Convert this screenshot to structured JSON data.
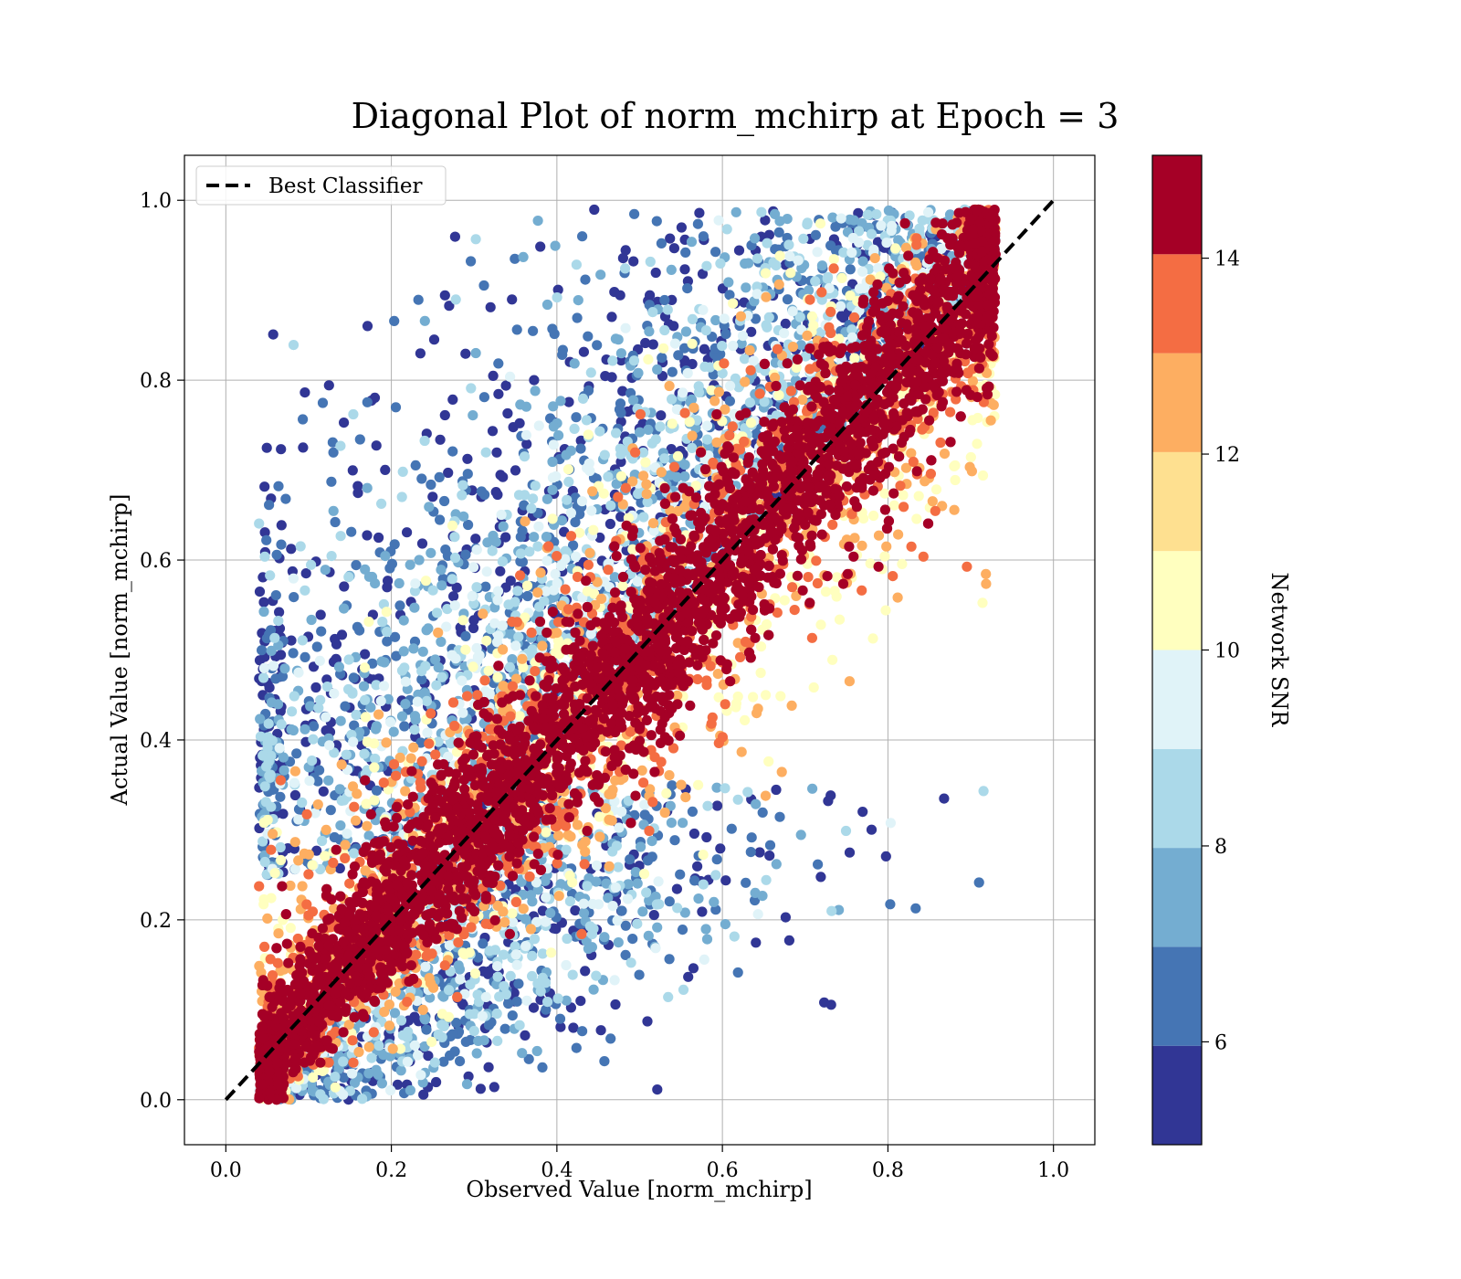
{
  "chart_data": {
    "type": "scatter",
    "title": "Diagonal Plot of norm_mchirp at Epoch = 3",
    "xlabel": "Observed Value [norm_mchirp]",
    "ylabel": "Actual Value [norm_mchirp]",
    "xlim": [
      -0.05,
      1.05
    ],
    "ylim": [
      -0.05,
      1.05
    ],
    "xticks": [
      "0.0",
      "0.2",
      "0.4",
      "0.6",
      "0.8",
      "1.0"
    ],
    "yticks": [
      "0.0",
      "0.2",
      "0.4",
      "0.6",
      "0.8",
      "1.0"
    ],
    "grid": true,
    "legend": {
      "position": "top-left",
      "entries": [
        "Best Classifier"
      ]
    },
    "reference_line": {
      "name": "Best Classifier",
      "x": [
        0,
        1
      ],
      "y": [
        0,
        1
      ],
      "style": "dashed",
      "color": "#000000"
    },
    "colorbar": {
      "label": "Network SNR",
      "range": [
        4.95,
        15.05
      ],
      "ticks": [
        "6",
        "8",
        "10",
        "12",
        "14"
      ],
      "levels": 10,
      "colors": [
        "#313695",
        "#4575b4",
        "#74add1",
        "#abd9e9",
        "#e0f3f8",
        "#ffffbf",
        "#fee090",
        "#fdae61",
        "#f46d43",
        "#a50026"
      ]
    },
    "points_description_snr_colored": true,
    "points": {
      "snr_bands": [
        {
          "snr": 14.5,
          "spread": 0.055
        },
        {
          "snr": 13.3,
          "spread": 0.085
        },
        {
          "snr": 12.1,
          "spread": 0.11
        },
        {
          "snr": 11.0,
          "spread": 0.13
        },
        {
          "snr": 9.5,
          "spread": 0.15
        },
        {
          "snr": 8.3,
          "spread": 0.18
        },
        {
          "snr": 7.2,
          "spread": 0.2
        },
        {
          "snr": 6.3,
          "spread": 0.23
        },
        {
          "snr": 5.3,
          "spread": 0.26
        }
      ]
    }
  }
}
